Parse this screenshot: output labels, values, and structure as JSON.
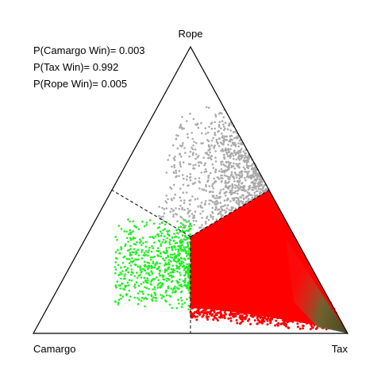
{
  "chart_data": {
    "type": "ternary",
    "vertices": {
      "left": "Camargo",
      "right": "Tax",
      "top": "Rope"
    },
    "annotations": [
      "P(Camargo Win)= 0.003",
      "P(Tax Win)= 0.992",
      "P(Rope Win)= 0.005"
    ]
  }
}
